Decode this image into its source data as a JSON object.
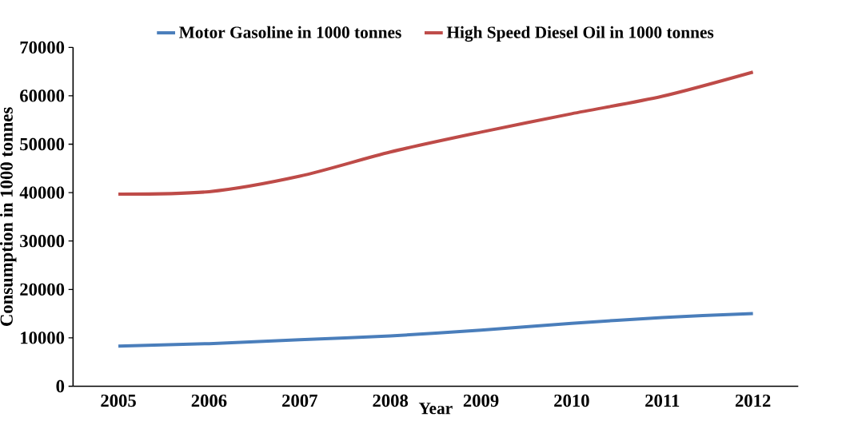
{
  "chart_data": {
    "type": "line",
    "xlabel": "Year",
    "ylabel": "Consumption in 1000 tonnes",
    "categories": [
      "2005",
      "2006",
      "2007",
      "2008",
      "2009",
      "2010",
      "2011",
      "2012"
    ],
    "series": [
      {
        "name": "Motor Gasoline in 1000 tonnes",
        "color": "#4a7ebb",
        "values": [
          8300,
          8800,
          9600,
          10400,
          11600,
          13000,
          14200,
          15000
        ]
      },
      {
        "name": "High Speed Diesel Oil in 1000 tonnes",
        "color": "#be4b48",
        "values": [
          39700,
          40200,
          43400,
          48400,
          52500,
          56300,
          59900,
          64900
        ]
      }
    ],
    "ylim": [
      0,
      70000
    ],
    "yticks": [
      0,
      10000,
      20000,
      30000,
      40000,
      50000,
      60000,
      70000
    ],
    "grid": false,
    "legend": "top",
    "marker": "none",
    "line_style": "solid"
  }
}
